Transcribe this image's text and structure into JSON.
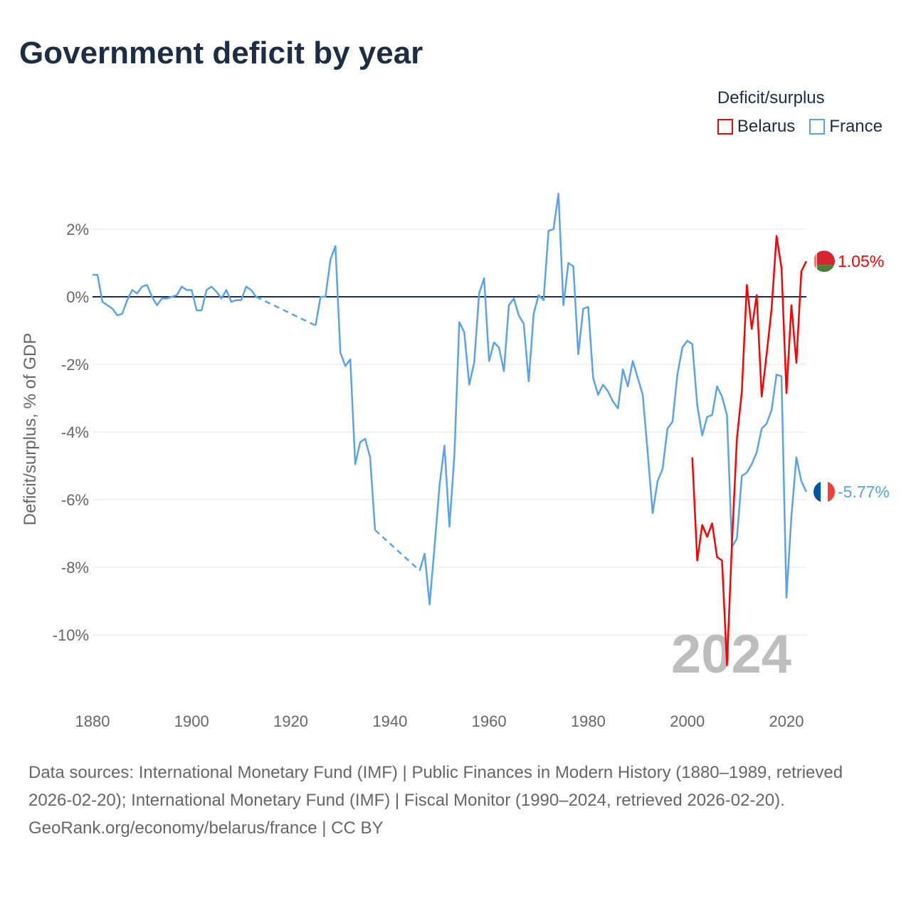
{
  "title": "Government deficit by year",
  "legend": {
    "title": "Deficit/surplus",
    "items": [
      {
        "name": "Belarus",
        "color": "#ff0000"
      },
      {
        "name": "France",
        "color": "#5ba3e8"
      }
    ]
  },
  "footer": {
    "sources": "Data sources: International Monetary Fund (IMF) | Public Finances in Modern History (1880–1989, retrieved 2026-02-20); International Monetary Fund (IMF) | Fiscal Monitor (1990–2024, retrieved 2026-02-20).",
    "credit": "GeoRank.org/economy/belarus/france | CC BY"
  },
  "chart_data": {
    "type": "line",
    "title": "Government deficit by year",
    "ylabel": "Deficit/surplus, % of GDP",
    "xlabel": "",
    "xlim": [
      1880,
      2024
    ],
    "ylim": [
      -12,
      3.5
    ],
    "x_ticks": [
      "1880",
      "1900",
      "1920",
      "1940",
      "1960",
      "1980",
      "2000",
      "2020"
    ],
    "y_ticks": [
      "2%",
      "0%",
      "-2%",
      "-4%",
      "-6%",
      "-8%",
      "-10%"
    ],
    "y_tick_values": [
      2,
      0,
      -2,
      -4,
      -6,
      -8,
      -10
    ],
    "x_tick_values": [
      1880,
      1900,
      1920,
      1940,
      1960,
      1980,
      2000,
      2020
    ],
    "year_watermark": "2024",
    "series": [
      {
        "name": "France",
        "color": "#5ba3e8",
        "end_label": "-5.77%",
        "start_year": 1880,
        "values": [
          0.65,
          0.65,
          -0.15,
          -0.25,
          -0.35,
          -0.55,
          -0.5,
          -0.1,
          0.2,
          0.1,
          0.3,
          0.35,
          0.0,
          -0.25,
          -0.05,
          -0.05,
          0.0,
          0.05,
          0.3,
          0.2,
          0.2,
          -0.4,
          -0.4,
          0.2,
          0.3,
          0.15,
          -0.05,
          0.2,
          -0.15,
          -0.1,
          -0.1,
          0.3,
          0.2,
          0.0,
          null,
          null,
          null,
          null,
          null,
          null,
          null,
          null,
          null,
          null,
          null,
          -0.85,
          0.0,
          0.0,
          1.1,
          1.5,
          -1.65,
          -2.05,
          -1.85,
          -4.95,
          -4.3,
          -4.2,
          -4.75,
          -6.9,
          null,
          null,
          null,
          null,
          null,
          null,
          null,
          null,
          -8.1,
          -7.6,
          -9.1,
          -7.4,
          -5.6,
          -4.4,
          -6.8,
          -4.7,
          -0.75,
          -1.05,
          -2.6,
          -1.95,
          0.1,
          0.55,
          -1.9,
          -1.35,
          -1.5,
          -2.2,
          -0.25,
          -0.05,
          -0.55,
          -0.8,
          -2.5,
          -0.5,
          0.05,
          -0.1,
          1.95,
          2.0,
          3.05,
          -0.25,
          1.0,
          0.9,
          -1.7,
          -0.35,
          -0.3,
          -2.4,
          -2.9,
          -2.6,
          -2.8,
          -3.1,
          -3.3,
          -2.15,
          -2.65,
          -1.9,
          -2.4,
          -2.9,
          -4.6,
          -6.4,
          -5.45,
          -5.1,
          -3.9,
          -3.7,
          -2.3,
          -1.5,
          -1.3,
          -1.4,
          -3.2,
          -4.1,
          -3.55,
          -3.5,
          -2.65,
          -2.95,
          -3.5,
          -7.4,
          -7.15,
          -5.3,
          -5.2,
          -4.95,
          -4.6,
          -3.9,
          -3.75,
          -3.35,
          -2.3,
          -2.35,
          -8.9,
          -6.5,
          -4.75,
          -5.45,
          -5.77
        ]
      },
      {
        "name": "Belarus",
        "color": "#ff0000",
        "end_label": "1.05%",
        "start_year": 2001,
        "values": [
          -4.75,
          -7.8,
          -6.75,
          -7.1,
          -6.7,
          -7.7,
          -7.8,
          -10.9,
          -7.3,
          -4.2,
          -2.8,
          0.35,
          -0.95,
          0.05,
          -2.95,
          -1.7,
          -0.35,
          1.8,
          0.85,
          -2.85,
          -0.25,
          -1.95,
          0.75,
          1.05
        ]
      }
    ]
  }
}
